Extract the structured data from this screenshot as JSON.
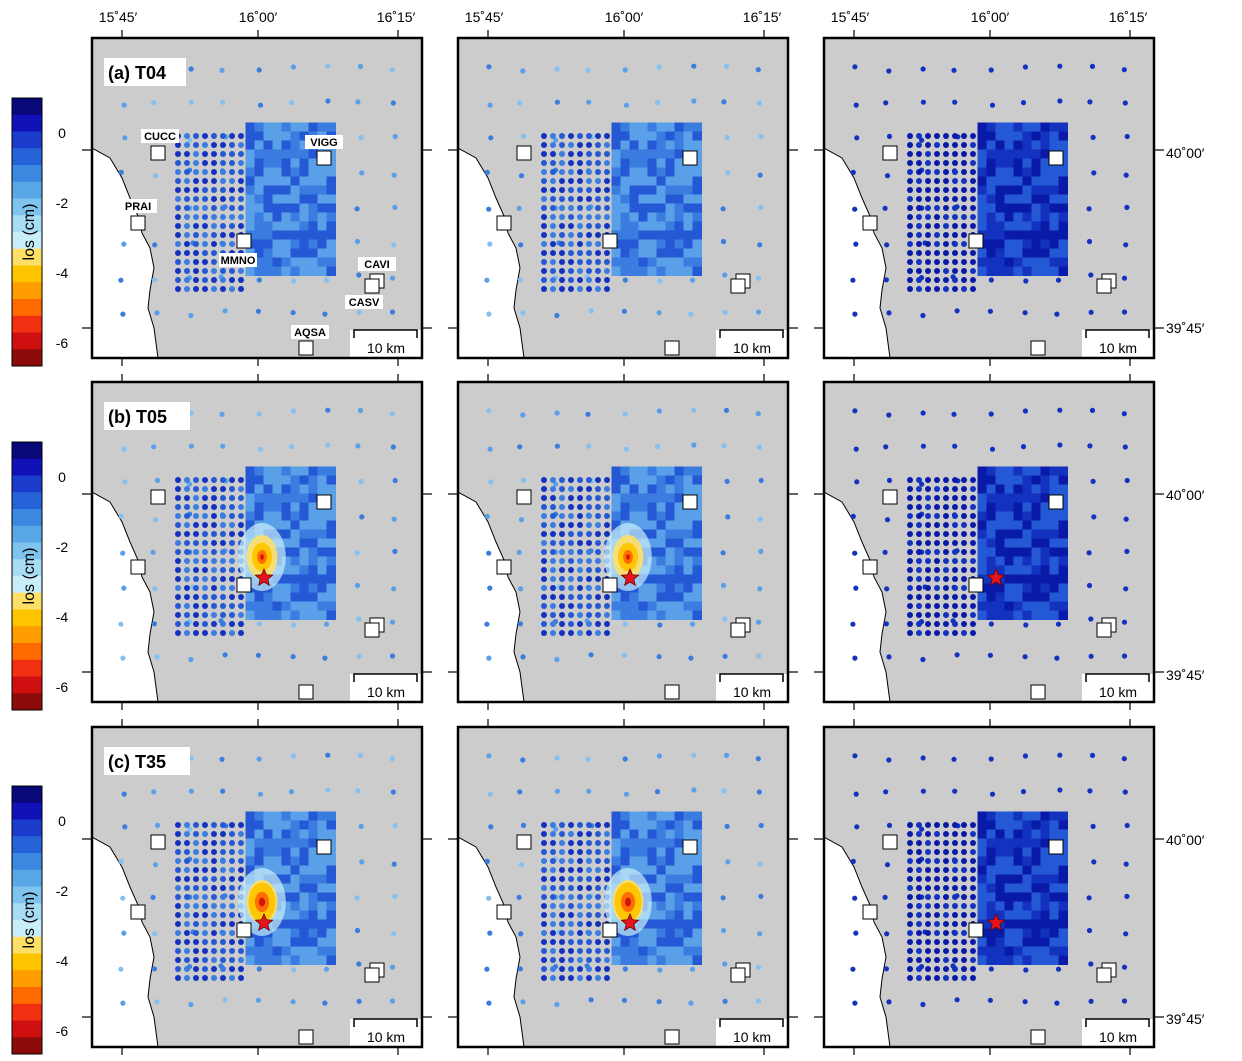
{
  "top_lon_labels": [
    "15˚45′",
    "16˚00′",
    "16˚15′"
  ],
  "right_lat_labels": [
    "40˚00′",
    "39˚45′"
  ],
  "colorbar": {
    "title": "los (cm)",
    "tick_labels": [
      "0",
      "-2",
      "-4",
      "-6"
    ],
    "colors": [
      "#08087a",
      "#1010b8",
      "#1c3ccc",
      "#2464d8",
      "#3a88e0",
      "#58a8e8",
      "#7ec4ef",
      "#a6dcf4",
      "#c8eefa",
      "#ffe066",
      "#ffc400",
      "#ff9c00",
      "#ff6a00",
      "#f03010",
      "#d01010",
      "#8c0c0c"
    ]
  },
  "row_labels": [
    "(a) T04",
    "(b) T05",
    "(c) T35"
  ],
  "scale_bar_label": "10 km",
  "stations": [
    {
      "name": "CUCC"
    },
    {
      "name": "VIGG"
    },
    {
      "name": "PRAI"
    },
    {
      "name": "MMNO"
    },
    {
      "name": "CAVI"
    },
    {
      "name": "CASV"
    },
    {
      "name": "AQSA"
    }
  ],
  "colors": {
    "background": "#cccccc",
    "land_sea": "#ffffff",
    "frame": "#000000",
    "star": "#e8141c"
  }
}
